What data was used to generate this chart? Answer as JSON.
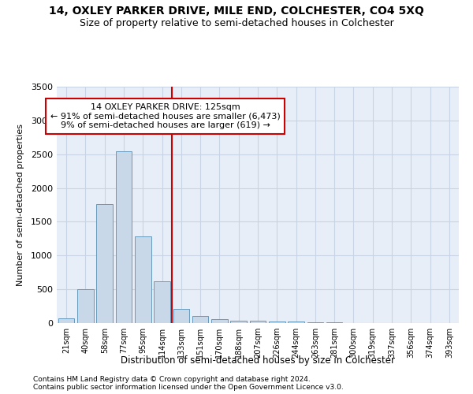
{
  "title": "14, OXLEY PARKER DRIVE, MILE END, COLCHESTER, CO4 5XQ",
  "subtitle": "Size of property relative to semi-detached houses in Colchester",
  "xlabel": "Distribution of semi-detached houses by size in Colchester",
  "ylabel": "Number of semi-detached properties",
  "footnote1": "Contains HM Land Registry data © Crown copyright and database right 2024.",
  "footnote2": "Contains public sector information licensed under the Open Government Licence v3.0.",
  "bar_color": "#c8d8e8",
  "bar_edge_color": "#6699bb",
  "grid_color": "#c8d4e4",
  "bg_color": "#e8eef8",
  "annotation_box_color": "#cc0000",
  "vline_color": "#cc0000",
  "categories": [
    "21sqm",
    "40sqm",
    "58sqm",
    "77sqm",
    "95sqm",
    "114sqm",
    "133sqm",
    "151sqm",
    "170sqm",
    "188sqm",
    "207sqm",
    "226sqm",
    "244sqm",
    "263sqm",
    "281sqm",
    "300sqm",
    "319sqm",
    "337sqm",
    "356sqm",
    "374sqm",
    "393sqm"
  ],
  "values": [
    70,
    500,
    1760,
    2540,
    1280,
    615,
    215,
    100,
    60,
    40,
    30,
    25,
    20,
    15,
    10,
    5,
    3,
    2,
    1,
    1,
    0
  ],
  "property_label": "14 OXLEY PARKER DRIVE: 125sqm",
  "pct_smaller": 91,
  "n_smaller": 6473,
  "pct_larger": 9,
  "n_larger": 619,
  "vline_position": 5.5,
  "ylim": [
    0,
    3500
  ],
  "yticks": [
    0,
    500,
    1000,
    1500,
    2000,
    2500,
    3000,
    3500
  ]
}
